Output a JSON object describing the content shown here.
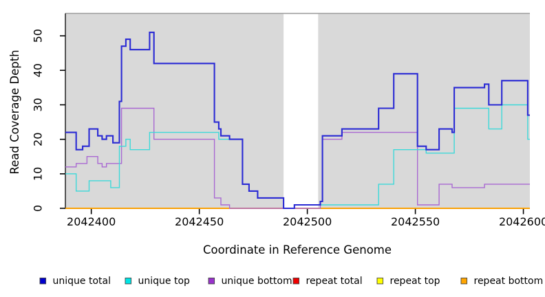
{
  "figure_title": "",
  "chart_data": {
    "type": "line",
    "step": true,
    "title": "",
    "xlabel": "Coordinate in Reference Genome",
    "ylabel": "Read Coverage Depth",
    "xlim": [
      2042388,
      2042603
    ],
    "ylim": [
      0,
      56.5
    ],
    "x_ticks": [
      2042400,
      2042450,
      2042500,
      2042550,
      2042600
    ],
    "y_ticks": [
      0,
      10,
      20,
      30,
      40,
      50
    ],
    "plot_background": "#d9d9d9",
    "page_background": "#ffffff",
    "grid": false,
    "legend_position": "bottom",
    "gap_band": {
      "start": 2042489,
      "end": 2042505,
      "color": "#ffffff"
    },
    "series": [
      {
        "name": "repeat total",
        "color": "#dd0000",
        "width": 1.4,
        "points": [
          [
            2042388,
            0
          ]
        ]
      },
      {
        "name": "repeat top",
        "color": "#ffff00",
        "width": 1.4,
        "points": [
          [
            2042388,
            0
          ]
        ]
      },
      {
        "name": "repeat bottom",
        "color": "#ffa000",
        "width": 1.7,
        "points": [
          [
            2042388,
            0
          ]
        ]
      },
      {
        "name": "unique bottom",
        "color": "#a968d2",
        "width": 1.4,
        "points": [
          [
            2042388,
            12
          ],
          [
            2042393,
            13
          ],
          [
            2042398,
            15
          ],
          [
            2042403,
            13
          ],
          [
            2042405,
            12
          ],
          [
            2042407,
            13
          ],
          [
            2042414,
            29
          ],
          [
            2042429,
            20
          ],
          [
            2042457,
            3
          ],
          [
            2042460,
            1
          ],
          [
            2042464,
            0
          ],
          [
            2042506,
            2
          ],
          [
            2042507,
            20
          ],
          [
            2042516,
            22
          ],
          [
            2042551,
            1
          ],
          [
            2042561,
            7
          ],
          [
            2042567,
            6
          ],
          [
            2042582,
            7
          ]
        ]
      },
      {
        "name": "unique top",
        "color": "#3cd9d9",
        "width": 1.4,
        "points": [
          [
            2042388,
            10
          ],
          [
            2042393,
            5
          ],
          [
            2042399,
            8
          ],
          [
            2042409,
            6
          ],
          [
            2042413,
            18
          ],
          [
            2042416,
            20
          ],
          [
            2042418,
            17
          ],
          [
            2042427,
            22
          ],
          [
            2042459,
            20
          ],
          [
            2042470,
            7
          ],
          [
            2042473,
            5
          ],
          [
            2042477,
            3
          ],
          [
            2042489,
            0
          ],
          [
            2042494,
            1
          ],
          [
            2042533,
            7
          ],
          [
            2042540,
            17
          ],
          [
            2042555,
            16
          ],
          [
            2042568,
            29
          ],
          [
            2042584,
            23
          ],
          [
            2042590,
            30
          ],
          [
            2042602,
            20
          ]
        ]
      },
      {
        "name": "unique total",
        "color": "#2a2ad4",
        "width": 2.1,
        "points": [
          [
            2042388,
            22
          ],
          [
            2042393,
            17
          ],
          [
            2042396,
            18
          ],
          [
            2042399,
            23
          ],
          [
            2042403,
            21
          ],
          [
            2042405,
            20
          ],
          [
            2042407,
            21
          ],
          [
            2042410,
            19
          ],
          [
            2042413,
            31
          ],
          [
            2042414,
            47
          ],
          [
            2042416,
            49
          ],
          [
            2042418,
            46
          ],
          [
            2042427,
            51
          ],
          [
            2042429,
            42
          ],
          [
            2042457,
            25
          ],
          [
            2042459,
            23
          ],
          [
            2042460,
            21
          ],
          [
            2042464,
            20
          ],
          [
            2042470,
            7
          ],
          [
            2042473,
            5
          ],
          [
            2042477,
            3
          ],
          [
            2042489,
            0
          ],
          [
            2042494,
            1
          ],
          [
            2042506,
            2
          ],
          [
            2042507,
            21
          ],
          [
            2042516,
            23
          ],
          [
            2042533,
            29
          ],
          [
            2042540,
            39
          ],
          [
            2042551,
            18
          ],
          [
            2042555,
            17
          ],
          [
            2042561,
            23
          ],
          [
            2042567,
            22
          ],
          [
            2042568,
            35
          ],
          [
            2042582,
            36
          ],
          [
            2042584,
            30
          ],
          [
            2042590,
            37
          ],
          [
            2042602,
            27
          ]
        ]
      }
    ]
  },
  "legend": {
    "items": [
      {
        "label": "unique total",
        "color": "#0000cd"
      },
      {
        "label": "unique top",
        "color": "#00e5e5"
      },
      {
        "label": "unique bottom",
        "color": "#9932cc"
      },
      {
        "label": "repeat total",
        "color": "#ee0000"
      },
      {
        "label": "repeat top",
        "color": "#ffff00"
      },
      {
        "label": "repeat bottom",
        "color": "#ffa500"
      }
    ]
  }
}
